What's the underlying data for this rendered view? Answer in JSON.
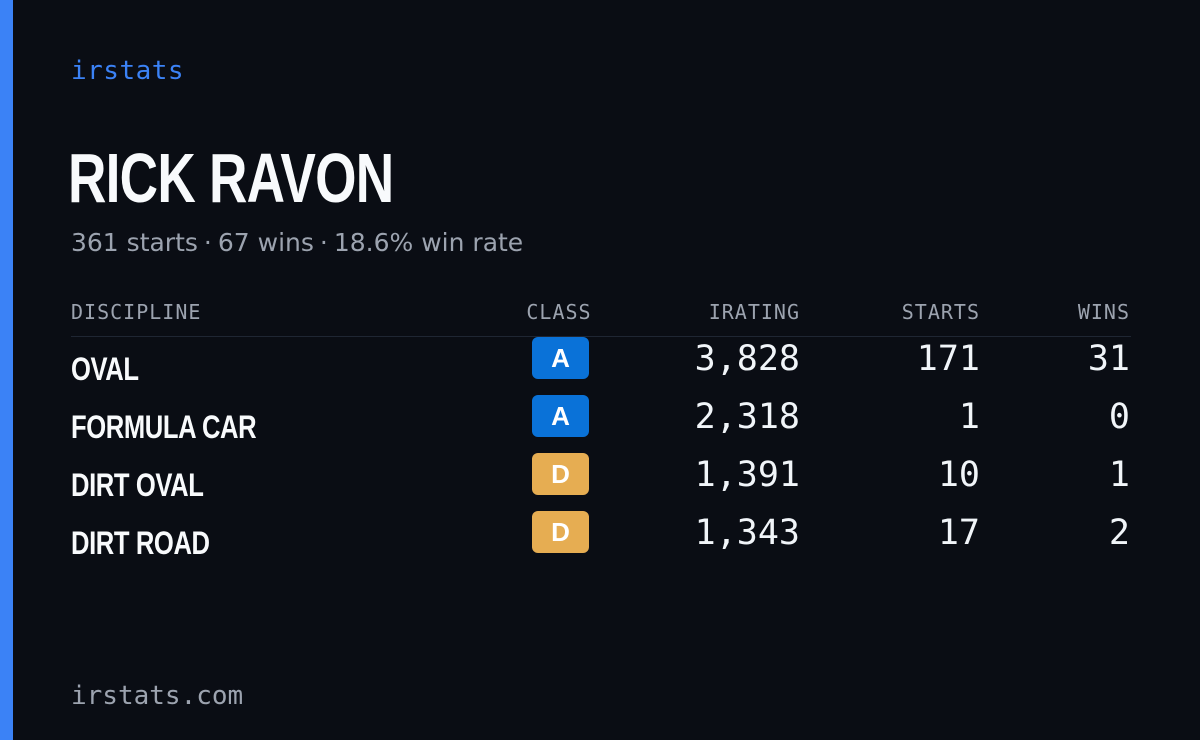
{
  "brand": "irstats",
  "driver": {
    "name": "RICK RAVON",
    "summary": {
      "starts": "361 starts",
      "wins": "67 wins",
      "win_rate": "18.6% win rate",
      "separator": "·"
    }
  },
  "table": {
    "headers": {
      "discipline": "DISCIPLINE",
      "class": "CLASS",
      "irating": "IRATING",
      "starts": "STARTS",
      "wins": "WINS"
    },
    "rows": [
      {
        "discipline": "OVAL",
        "class": "A",
        "irating": "3,828",
        "starts": "171",
        "wins": "31"
      },
      {
        "discipline": "FORMULA CAR",
        "class": "A",
        "irating": "2,318",
        "starts": "1",
        "wins": "0"
      },
      {
        "discipline": "DIRT OVAL",
        "class": "D",
        "irating": "1,391",
        "starts": "10",
        "wins": "1"
      },
      {
        "discipline": "DIRT ROAD",
        "class": "D",
        "irating": "1,343",
        "starts": "17",
        "wins": "2"
      }
    ]
  },
  "class_colors": {
    "A": {
      "bg": "#0a72d8",
      "fg": "#ffffff"
    },
    "D": {
      "bg": "#e6ad52",
      "fg": "#ffffff"
    }
  },
  "colors": {
    "accent": "#3b82f6",
    "background": "#0a0d14"
  },
  "footer": {
    "domain": "irstats.com"
  }
}
